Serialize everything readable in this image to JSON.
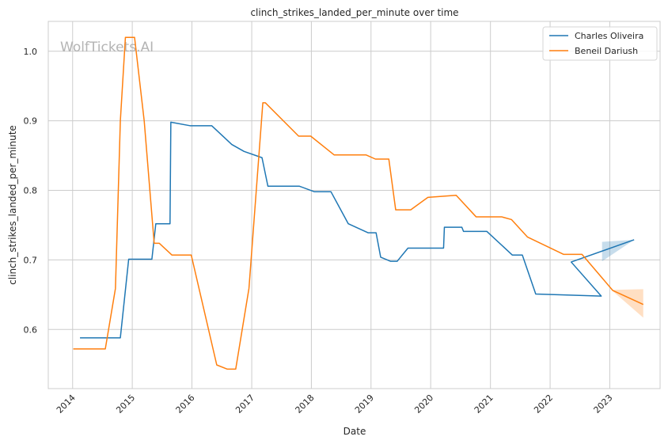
{
  "chart_data": {
    "type": "line",
    "title": "clinch_strikes_landed_per_minute over time",
    "xlabel": "Date",
    "ylabel": "clinch_strikes_landed_per_minute",
    "watermark": "WolfTickets.AI",
    "x_ticks": [
      "2014",
      "2015",
      "2016",
      "2017",
      "2018",
      "2019",
      "2020",
      "2021",
      "2022",
      "2023"
    ],
    "y_ticks": [
      0.6,
      0.7,
      0.8,
      0.9,
      1.0
    ],
    "ylim": [
      0.515,
      1.043
    ],
    "xlim": [
      "2013-08-05",
      "2023-11-05"
    ],
    "grid": true,
    "legend": "top-right",
    "series": [
      {
        "name": "Charles Oliveira",
        "color": "#1f77b4",
        "points": [
          [
            "2014-02-15",
            0.588
          ],
          [
            "2014-10-20",
            0.588
          ],
          [
            "2014-12-10",
            0.701
          ],
          [
            "2015-05-01",
            0.701
          ],
          [
            "2015-05-25",
            0.752
          ],
          [
            "2015-08-20",
            0.752
          ],
          [
            "2015-08-25",
            0.898
          ],
          [
            "2015-12-20",
            0.893
          ],
          [
            "2016-05-01",
            0.893
          ],
          [
            "2016-09-01",
            0.866
          ],
          [
            "2016-11-15",
            0.856
          ],
          [
            "2017-03-05",
            0.847
          ],
          [
            "2017-04-10",
            0.806
          ],
          [
            "2017-10-20",
            0.806
          ],
          [
            "2018-01-20",
            0.798
          ],
          [
            "2018-05-01",
            0.798
          ],
          [
            "2018-08-15",
            0.752
          ],
          [
            "2018-12-15",
            0.739
          ],
          [
            "2019-02-01",
            0.739
          ],
          [
            "2019-03-01",
            0.704
          ],
          [
            "2019-05-01",
            0.698
          ],
          [
            "2019-06-10",
            0.698
          ],
          [
            "2019-08-15",
            0.717
          ],
          [
            "2019-11-25",
            0.717
          ],
          [
            "2020-03-20",
            0.717
          ],
          [
            "2020-03-25",
            0.747
          ],
          [
            "2020-07-10",
            0.747
          ],
          [
            "2020-07-20",
            0.741
          ],
          [
            "2020-12-10",
            0.741
          ],
          [
            "2021-05-15",
            0.707
          ],
          [
            "2021-07-15",
            0.707
          ],
          [
            "2021-10-05",
            0.651
          ],
          [
            "2022-11-10",
            0.648
          ],
          [
            "2022-05-10",
            0.697
          ],
          [
            "2023-05-30",
            0.729
          ]
        ],
        "band": {
          "x": [
            "2022-11-15",
            "2023-05-30"
          ],
          "upper": [
            0.726,
            0.729
          ],
          "lower": [
            0.698,
            0.729
          ]
        }
      },
      {
        "name": "Beneil Dariush",
        "color": "#ff7f0e",
        "points": [
          [
            "2014-01-05",
            0.572
          ],
          [
            "2014-07-20",
            0.572
          ],
          [
            "2014-09-20",
            0.659
          ],
          [
            "2014-10-20",
            0.9
          ],
          [
            "2014-11-20",
            1.02
          ],
          [
            "2015-01-15",
            1.02
          ],
          [
            "2015-03-15",
            0.9
          ],
          [
            "2015-05-15",
            0.724
          ],
          [
            "2015-06-15",
            0.724
          ],
          [
            "2015-09-01",
            0.707
          ],
          [
            "2015-12-28",
            0.707
          ],
          [
            "2016-06-01",
            0.549
          ],
          [
            "2016-08-05",
            0.543
          ],
          [
            "2016-09-25",
            0.543
          ],
          [
            "2016-12-15",
            0.659
          ],
          [
            "2017-03-10",
            0.926
          ],
          [
            "2017-03-25",
            0.926
          ],
          [
            "2017-10-15",
            0.878
          ],
          [
            "2017-12-28",
            0.878
          ],
          [
            "2018-05-20",
            0.851
          ],
          [
            "2018-12-01",
            0.851
          ],
          [
            "2019-01-28",
            0.845
          ],
          [
            "2019-04-20",
            0.845
          ],
          [
            "2019-06-01",
            0.772
          ],
          [
            "2019-09-01",
            0.772
          ],
          [
            "2019-12-15",
            0.79
          ],
          [
            "2020-06-05",
            0.793
          ],
          [
            "2020-10-05",
            0.762
          ],
          [
            "2021-03-10",
            0.762
          ],
          [
            "2021-05-10",
            0.758
          ],
          [
            "2021-08-15",
            0.733
          ],
          [
            "2022-03-25",
            0.708
          ],
          [
            "2022-07-15",
            0.708
          ],
          [
            "2023-01-20",
            0.656
          ],
          [
            "2023-07-25",
            0.636
          ]
        ],
        "band": {
          "x": [
            "2023-01-20",
            "2023-07-25"
          ],
          "upper": [
            0.657,
            0.658
          ],
          "lower": [
            0.655,
            0.617
          ]
        }
      }
    ]
  }
}
